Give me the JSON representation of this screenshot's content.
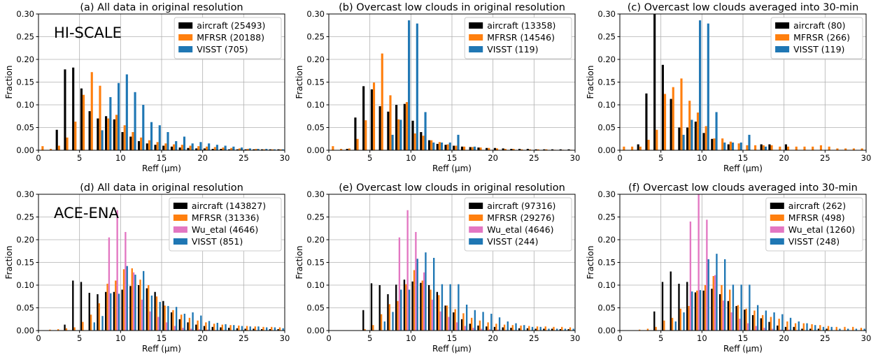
{
  "figure": {
    "colors": {
      "aircraft": "#000000",
      "MFRSR": "#ff7f0e",
      "Wu_etal": "#e377c2",
      "VISST": "#1f77b4"
    },
    "bins": [
      0,
      1,
      2,
      3,
      4,
      5,
      6,
      7,
      8,
      9,
      10,
      11,
      12,
      13,
      14,
      15,
      16,
      17,
      18,
      19,
      20,
      21,
      22,
      23,
      24,
      25,
      26,
      27,
      28,
      29
    ]
  },
  "chart_data": [
    {
      "type": "bar",
      "title": "(a) All data in original resolution",
      "campaign_label": "HI-SCALE",
      "xlabel": "Reff (μm)",
      "ylabel": "Fraction",
      "xlim": [
        0,
        30
      ],
      "ylim": [
        0,
        0.3
      ],
      "xticks": [
        "0",
        "5",
        "10",
        "15",
        "20",
        "25",
        "30"
      ],
      "yticks": [
        "0.00",
        "0.05",
        "0.10",
        "0.15",
        "0.20",
        "0.25",
        "0.30"
      ],
      "grid": true,
      "legend_position": "top-right",
      "series": [
        {
          "name": "aircraft (25493)",
          "key": "aircraft",
          "values": [
            0,
            0,
            0.045,
            0.178,
            0.182,
            0.136,
            0.086,
            0.07,
            0.075,
            0.068,
            0.04,
            0.03,
            0.02,
            0.015,
            0.012,
            0.01,
            0.008,
            0.006,
            0.005,
            0.004,
            0.004,
            0.003,
            0.003,
            0.002,
            0.002,
            0.002,
            0.002,
            0.002,
            0.002,
            0.002
          ]
        },
        {
          "name": "MFRSR (20188)",
          "key": "MFRSR",
          "values": [
            0.009,
            0.003,
            0.01,
            0.028,
            0.063,
            0.122,
            0.172,
            0.142,
            0.07,
            0.078,
            0.055,
            0.04,
            0.028,
            0.022,
            0.018,
            0.015,
            0.013,
            0.012,
            0.01,
            0.009,
            0.008,
            0.007,
            0.006,
            0.005,
            0.004,
            0.003,
            0.003,
            0.002,
            0.002,
            0.002
          ]
        },
        {
          "name": "VISST (705)",
          "key": "VISST",
          "values": [
            0,
            0,
            0,
            0,
            0,
            0,
            0,
            0.044,
            0.117,
            0.148,
            0.167,
            0.128,
            0.1,
            0.062,
            0.055,
            0.04,
            0.02,
            0.03,
            0.015,
            0.018,
            0.015,
            0.012,
            0.01,
            0.008,
            0.006,
            0.004,
            0.003,
            0.003,
            0.002,
            0.002
          ]
        }
      ]
    },
    {
      "type": "bar",
      "title": "(b) Overcast low clouds in original resolution",
      "xlabel": "Reff (μm)",
      "ylabel": "Fraction",
      "xlim": [
        0,
        30
      ],
      "ylim": [
        0,
        0.3
      ],
      "xticks": [
        "0",
        "5",
        "10",
        "15",
        "20",
        "25",
        "30"
      ],
      "yticks": [
        "0.00",
        "0.05",
        "0.10",
        "0.15",
        "0.20",
        "0.25",
        "0.30"
      ],
      "grid": true,
      "legend_position": "top-right",
      "series": [
        {
          "name": "aircraft (13358)",
          "key": "aircraft",
          "values": [
            0,
            0,
            0.003,
            0.072,
            0.141,
            0.134,
            0.097,
            0.085,
            0.1,
            0.102,
            0.065,
            0.04,
            0.022,
            0.014,
            0.012,
            0.01,
            0.008,
            0.007,
            0.006,
            0.005,
            0.005,
            0.004,
            0.003,
            0.003,
            0.003,
            0.002,
            0.002,
            0.002,
            0.002,
            0.002
          ]
        },
        {
          "name": "MFRSR (14546)",
          "key": "MFRSR",
          "values": [
            0.009,
            0.003,
            0.004,
            0.025,
            0.066,
            0.149,
            0.213,
            0.121,
            0.068,
            0.106,
            0.037,
            0.032,
            0.022,
            0.018,
            0.013,
            0.01,
            0.008,
            0.007,
            0.006,
            0.005,
            0.004,
            0.003,
            0.003,
            0.002,
            0.002,
            0.002,
            0.002,
            0.001,
            0.001,
            0.001
          ]
        },
        {
          "name": "VISST (119)",
          "key": "VISST",
          "values": [
            0,
            0,
            0,
            0,
            0,
            0,
            0,
            0.034,
            0.067,
            0.286,
            0.279,
            0.084,
            0.017,
            0.017,
            0.017,
            0.034,
            0,
            0.008,
            0,
            0,
            0,
            0,
            0,
            0,
            0,
            0,
            0,
            0,
            0,
            0
          ]
        }
      ]
    },
    {
      "type": "bar",
      "title": "(c) Overcast low clouds averaged into 30-min",
      "xlabel": "Reff (μm)",
      "ylabel": "Fraction",
      "xlim": [
        0,
        30
      ],
      "ylim": [
        0,
        0.3
      ],
      "xticks": [
        "0",
        "5",
        "10",
        "15",
        "20",
        "25",
        "30"
      ],
      "yticks": [
        "0.00",
        "0.05",
        "0.10",
        "0.15",
        "0.20",
        "0.25",
        "0.30"
      ],
      "grid": true,
      "legend_position": "top-right",
      "series": [
        {
          "name": "aircraft (80)",
          "key": "aircraft",
          "values": [
            0,
            0,
            0.013,
            0.125,
            0.3,
            0.188,
            0.113,
            0.05,
            0.05,
            0.063,
            0.038,
            0.025,
            0,
            0.013,
            0,
            0,
            0,
            0.013,
            0.013,
            0,
            0.013,
            0,
            0,
            0,
            0,
            0,
            0,
            0,
            0,
            0
          ]
        },
        {
          "name": "MFRSR (266)",
          "key": "MFRSR",
          "values": [
            0.008,
            0.008,
            0.008,
            0.023,
            0.045,
            0.124,
            0.139,
            0.158,
            0.109,
            0.083,
            0.053,
            0.026,
            0.026,
            0.019,
            0.015,
            0.011,
            0.011,
            0.011,
            0.011,
            0.008,
            0.008,
            0.008,
            0.008,
            0.008,
            0.011,
            0.008,
            0.004,
            0.004,
            0.004,
            0.004
          ]
        },
        {
          "name": "VISST (119)",
          "key": "VISST",
          "values": [
            0,
            0,
            0,
            0,
            0,
            0,
            0,
            0.034,
            0.067,
            0.286,
            0.279,
            0.084,
            0.017,
            0.017,
            0.017,
            0.034,
            0,
            0.008,
            0,
            0,
            0,
            0,
            0,
            0,
            0,
            0,
            0,
            0,
            0,
            0
          ]
        }
      ]
    },
    {
      "type": "bar",
      "title": "(d) All data in original resolution",
      "campaign_label": "ACE-ENA",
      "xlabel": "Reff (μm)",
      "ylabel": "Fraction",
      "xlim": [
        0,
        30
      ],
      "ylim": [
        0,
        0.3
      ],
      "xticks": [
        "0",
        "5",
        "10",
        "15",
        "20",
        "25",
        "30"
      ],
      "yticks": [
        "0.00",
        "0.05",
        "0.10",
        "0.15",
        "0.20",
        "0.25",
        "0.30"
      ],
      "grid": true,
      "legend_position": "top-right",
      "series": [
        {
          "name": "aircraft (143827)",
          "key": "aircraft",
          "values": [
            0,
            0,
            0,
            0.013,
            0.11,
            0.107,
            0.083,
            0.08,
            0.085,
            0.085,
            0.09,
            0.098,
            0.1,
            0.093,
            0.085,
            0.065,
            0.04,
            0.025,
            0.018,
            0.013,
            0.01,
            0.008,
            0.007,
            0.006,
            0.005,
            0.004,
            0.004,
            0.003,
            0.003,
            0.003
          ]
        },
        {
          "name": "MFRSR (31336)",
          "key": "MFRSR",
          "values": [
            0,
            0.002,
            0.003,
            0.005,
            0.007,
            0.019,
            0.035,
            0.06,
            0.103,
            0.11,
            0.135,
            0.137,
            0.112,
            0.1,
            0.075,
            0.055,
            0.045,
            0.035,
            0.028,
            0.022,
            0.018,
            0.015,
            0.013,
            0.012,
            0.011,
            0.01,
            0.009,
            0.008,
            0.008,
            0.007
          ]
        },
        {
          "name": "Wu_etal (4646)",
          "key": "Wu_etal",
          "values": [
            0,
            0,
            0,
            0,
            0,
            0,
            0,
            0,
            0.205,
            0.265,
            0.217,
            0.128,
            0.068,
            0.042,
            0.03,
            0.018,
            0.01,
            0.006,
            0.004,
            0.003,
            0.002,
            0.001,
            0.001,
            0,
            0,
            0,
            0,
            0,
            0,
            0
          ]
        },
        {
          "name": "VISST (851)",
          "key": "VISST",
          "values": [
            0,
            0,
            0,
            0,
            0,
            0,
            0.018,
            0.032,
            0.082,
            0.081,
            0.142,
            0.123,
            0.131,
            0.077,
            0.063,
            0.054,
            0.052,
            0.037,
            0.04,
            0.033,
            0.021,
            0.017,
            0.014,
            0.012,
            0.01,
            0.009,
            0.009,
            0.007,
            0.007,
            0.005
          ]
        }
      ]
    },
    {
      "type": "bar",
      "title": "(e) Overcast low clouds in original resolution",
      "xlabel": "Reff (μm)",
      "ylabel": "Fraction",
      "xlim": [
        0,
        30
      ],
      "ylim": [
        0,
        0.3
      ],
      "xticks": [
        "0",
        "5",
        "10",
        "15",
        "20",
        "25",
        "30"
      ],
      "yticks": [
        "0.00",
        "0.05",
        "0.10",
        "0.15",
        "0.20",
        "0.25",
        "0.30"
      ],
      "grid": true,
      "legend_position": "top-right",
      "series": [
        {
          "name": "aircraft (97316)",
          "key": "aircraft",
          "values": [
            0,
            0,
            0,
            0,
            0.045,
            0.104,
            0.1,
            0.08,
            0.101,
            0.112,
            0.108,
            0.105,
            0.1,
            0.085,
            0.055,
            0.04,
            0.025,
            0.015,
            0.011,
            0.009,
            0.008,
            0.007,
            0.006,
            0.005,
            0.005,
            0.004,
            0.004,
            0.004,
            0.003,
            0.003
          ]
        },
        {
          "name": "MFRSR (29276)",
          "key": "MFRSR",
          "values": [
            0,
            0,
            0,
            0,
            0.003,
            0.012,
            0.036,
            0.058,
            0.065,
            0.102,
            0.133,
            0.11,
            0.09,
            0.078,
            0.055,
            0.047,
            0.038,
            0.028,
            0.022,
            0.018,
            0.015,
            0.013,
            0.012,
            0.011,
            0.01,
            0.009,
            0.009,
            0.008,
            0.008,
            0.007
          ]
        },
        {
          "name": "Wu_etal (4646)",
          "key": "Wu_etal",
          "values": [
            0,
            0,
            0,
            0,
            0,
            0,
            0,
            0,
            0.205,
            0.265,
            0.217,
            0.128,
            0.068,
            0.042,
            0.03,
            0.018,
            0.01,
            0.006,
            0.004,
            0.003,
            0.002,
            0.001,
            0.001,
            0,
            0,
            0,
            0,
            0,
            0,
            0
          ]
        },
        {
          "name": "VISST (244)",
          "key": "VISST",
          "values": [
            0,
            0,
            0,
            0,
            0,
            0,
            0.02,
            0.041,
            0.09,
            0.09,
            0.158,
            0.172,
            0.16,
            0.102,
            0.102,
            0.102,
            0.057,
            0.045,
            0.041,
            0.037,
            0.029,
            0.02,
            0.016,
            0.012,
            0.008,
            0.008,
            0.004,
            0.004,
            0.004,
            0.004
          ]
        }
      ]
    },
    {
      "type": "bar",
      "title": "(f) Overcast low clouds averaged into 30-min",
      "xlabel": "Reff (μm)",
      "ylabel": "Fraction",
      "xlim": [
        0,
        30
      ],
      "ylim": [
        0,
        0.3
      ],
      "xticks": [
        "0",
        "5",
        "10",
        "15",
        "20",
        "25",
        "30"
      ],
      "yticks": [
        "0.00",
        "0.05",
        "0.10",
        "0.15",
        "0.20",
        "0.25",
        "0.30"
      ],
      "grid": true,
      "legend_position": "top-right",
      "series": [
        {
          "name": "aircraft (262)",
          "key": "aircraft",
          "values": [
            0,
            0,
            0,
            0,
            0.042,
            0.107,
            0.13,
            0.103,
            0.107,
            0.084,
            0.088,
            0.092,
            0.08,
            0.065,
            0.054,
            0.046,
            0.034,
            0.027,
            0.019,
            0.011,
            0.008,
            0.008,
            0.004,
            0.004,
            0.004,
            0.004,
            0,
            0,
            0,
            0
          ]
        },
        {
          "name": "MFRSR (498)",
          "key": "MFRSR",
          "values": [
            0,
            0,
            0.002,
            0.004,
            0.008,
            0.022,
            0.028,
            0.048,
            0.054,
            0.088,
            0.1,
            0.12,
            0.1,
            0.09,
            0.056,
            0.048,
            0.044,
            0.034,
            0.03,
            0.026,
            0.02,
            0.016,
            0.016,
            0.014,
            0.012,
            0.01,
            0.008,
            0.008,
            0.008,
            0.006
          ]
        },
        {
          "name": "Wu_etal (1260)",
          "key": "Wu_etal",
          "values": [
            0,
            0,
            0,
            0,
            0,
            0,
            0,
            0,
            0.24,
            0.3,
            0.244,
            0.122,
            0.066,
            0.04,
            0.026,
            0.016,
            0.01,
            0.006,
            0.004,
            0.002,
            0.002,
            0.001,
            0,
            0,
            0,
            0,
            0,
            0,
            0,
            0
          ]
        },
        {
          "name": "VISST (248)",
          "key": "VISST",
          "values": [
            0,
            0,
            0,
            0,
            0,
            0,
            0.02,
            0.04,
            0.086,
            0.089,
            0.157,
            0.169,
            0.157,
            0.101,
            0.101,
            0.101,
            0.056,
            0.044,
            0.04,
            0.036,
            0.028,
            0.02,
            0.016,
            0.012,
            0.008,
            0.008,
            0.004,
            0.004,
            0.004,
            0.004
          ]
        }
      ]
    }
  ]
}
